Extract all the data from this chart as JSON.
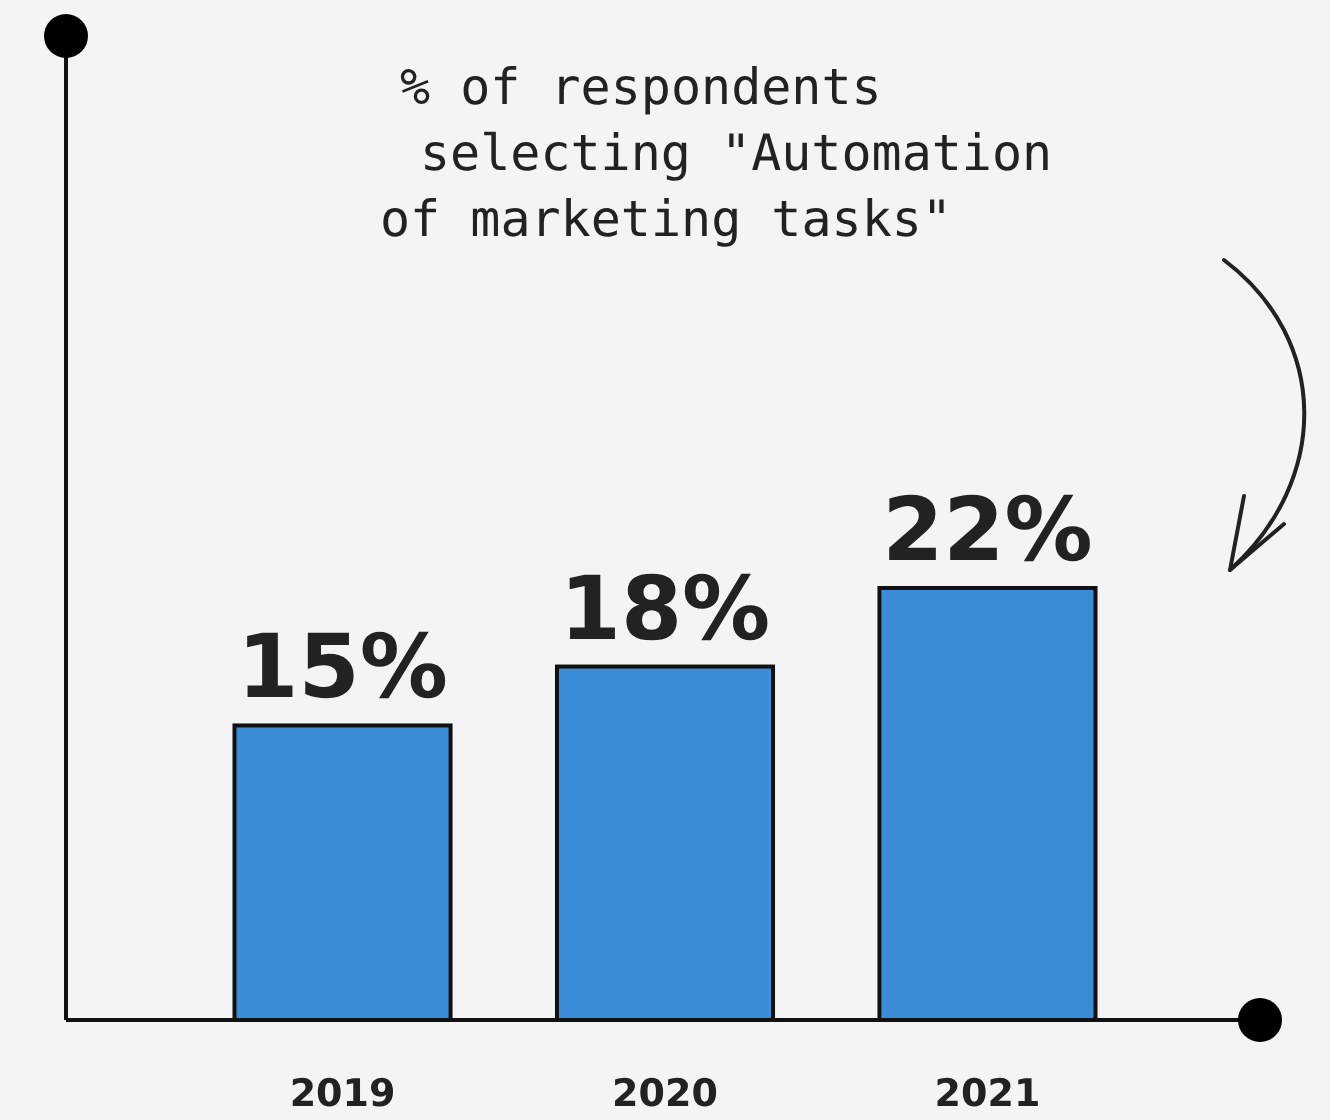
{
  "chart_data": {
    "type": "bar",
    "categories": [
      "2019",
      "2020",
      "2021"
    ],
    "values": [
      15,
      18,
      22
    ],
    "color": "#3a8dd6",
    "data_labels": true,
    "value_labels": [
      "15%",
      "18%",
      "22%"
    ],
    "annotations": [
      "% of respondents selecting \"Automation of marketing tasks\""
    ],
    "grid": false
  }
}
